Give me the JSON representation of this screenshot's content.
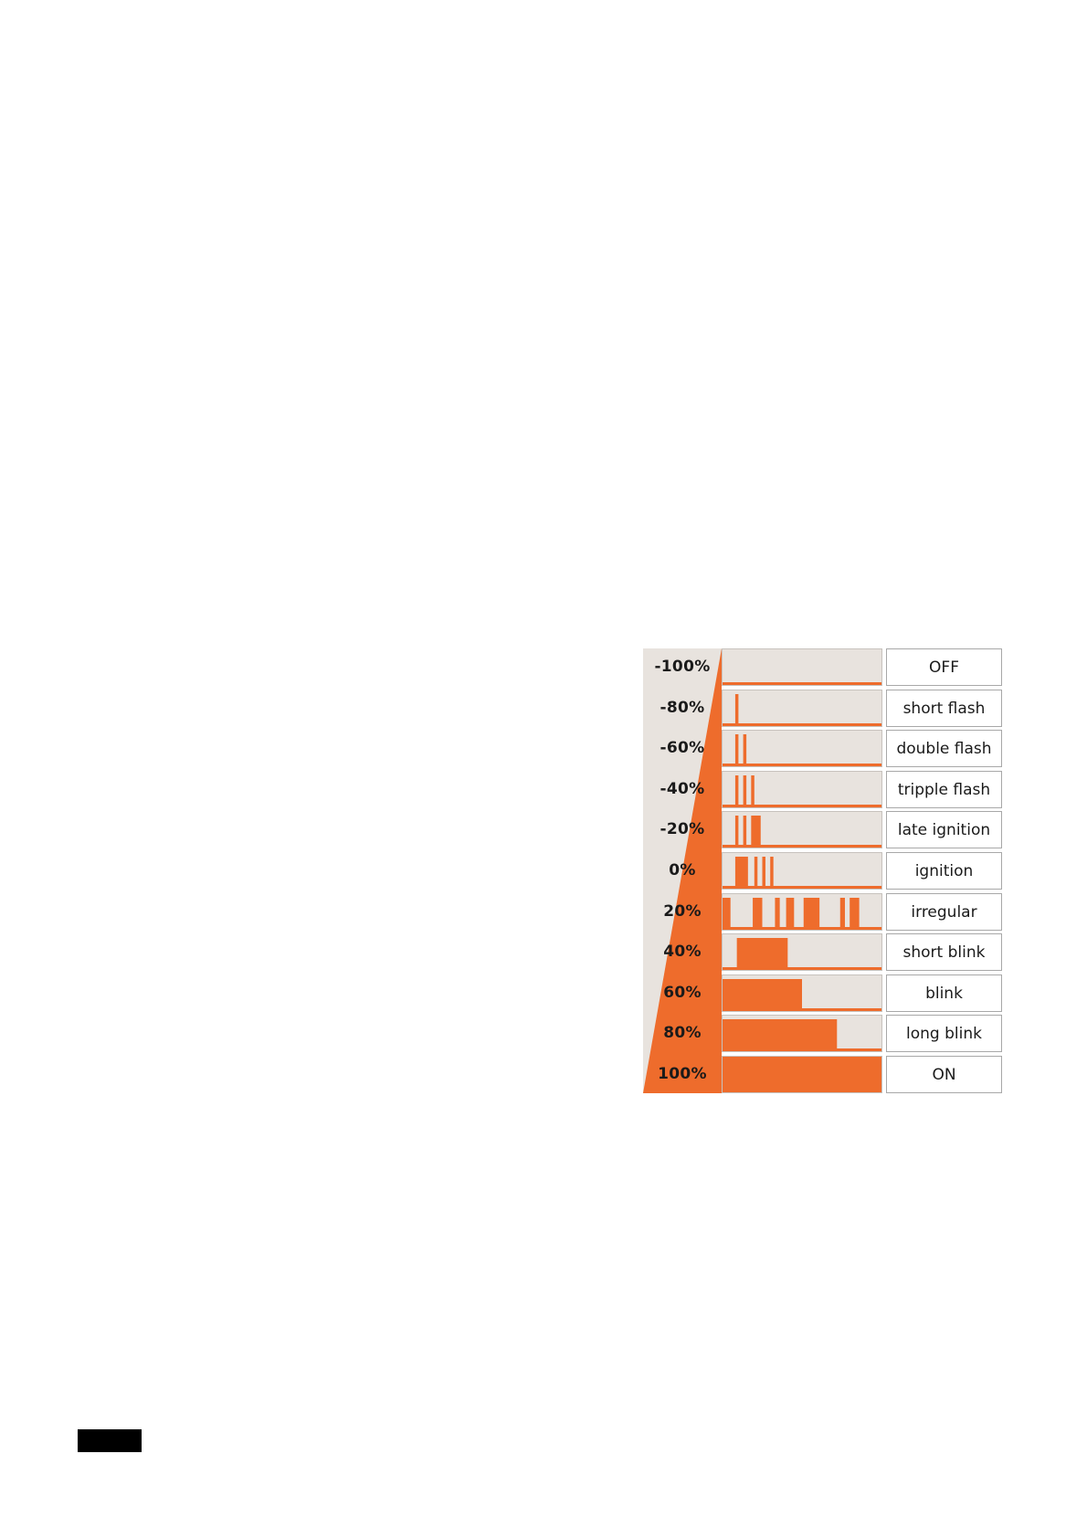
{
  "colors": {
    "accent": "#ee6c2c",
    "cell_bg": "#e8e3de",
    "ramp_bg": "#e8e3de"
  },
  "rows": [
    {
      "percent": "-100%",
      "label": "OFF",
      "pulses": [],
      "baseline": true
    },
    {
      "percent": "-80%",
      "label": "short flash",
      "pulses": [
        [
          0.08,
          0.1
        ]
      ],
      "baseline": true
    },
    {
      "percent": "-60%",
      "label": "double flash",
      "pulses": [
        [
          0.08,
          0.1
        ],
        [
          0.13,
          0.15
        ]
      ],
      "baseline": true
    },
    {
      "percent": "-40%",
      "label": "tripple flash",
      "pulses": [
        [
          0.08,
          0.1
        ],
        [
          0.13,
          0.15
        ],
        [
          0.18,
          0.2
        ]
      ],
      "baseline": true
    },
    {
      "percent": "-20%",
      "label": "late ignition",
      "pulses": [
        [
          0.08,
          0.1
        ],
        [
          0.13,
          0.15
        ],
        [
          0.18,
          0.24
        ]
      ],
      "baseline": true
    },
    {
      "percent": "0%",
      "label": "ignition",
      "pulses": [
        [
          0.08,
          0.16
        ],
        [
          0.2,
          0.22
        ],
        [
          0.25,
          0.27
        ],
        [
          0.3,
          0.32
        ]
      ],
      "baseline": true
    },
    {
      "percent": "20%",
      "label": "irregular",
      "pulses": [
        [
          0.0,
          0.05
        ],
        [
          0.19,
          0.25
        ],
        [
          0.33,
          0.36
        ],
        [
          0.4,
          0.45
        ],
        [
          0.51,
          0.61
        ],
        [
          0.74,
          0.77
        ],
        [
          0.8,
          0.86
        ]
      ],
      "baseline": true
    },
    {
      "percent": "40%",
      "label": "short blink",
      "pulses": [
        [
          0.09,
          0.41
        ]
      ],
      "baseline": true
    },
    {
      "percent": "60%",
      "label": "blink",
      "pulses": [
        [
          0.0,
          0.5
        ]
      ],
      "baseline": true
    },
    {
      "percent": "80%",
      "label": "long blink",
      "pulses": [
        [
          0.0,
          0.72
        ]
      ],
      "baseline": true
    },
    {
      "percent": "100%",
      "label": "ON",
      "pulses": [
        [
          0.0,
          1.0
        ]
      ],
      "baseline": false
    }
  ]
}
